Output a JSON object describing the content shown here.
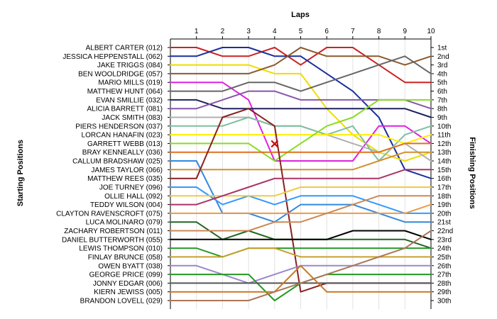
{
  "chart_data": {
    "type": "line",
    "title": "",
    "xlabel": "Laps",
    "ylabel_left": "Starting Positions",
    "ylabel_right": "Finishing Positions",
    "laps": [
      0,
      1,
      2,
      3,
      4,
      5,
      6,
      7,
      8,
      9,
      10
    ],
    "lap_tick_labels": [
      "1",
      "2",
      "3",
      "4",
      "5",
      "6",
      "7",
      "8",
      "9",
      "10"
    ],
    "ylim": [
      1,
      30
    ],
    "starting_labels": [
      "ALBERT CARTER (012)",
      "JESSICA HEPPENSTALL (062)",
      "JAKE TRIGGS (084)",
      "BEN WOOLDRIDGE (057)",
      "MARIO MILLS (019)",
      "MATTHEW HUNT (064)",
      "EVAN SMILLIE (032)",
      "ALICIA BARRETT (081)",
      "JACK SMITH (083)",
      "PIERS HENDERSON (037)",
      "LORCAN HANAFIN (023)",
      "GARRETT WEBB (013)",
      "BRAY KENNEALLY (036)",
      "CALLUM BRADSHAW (025)",
      "JAMES TAYLOR (066)",
      "MATTHEW REES (035)",
      "JOE TURNEY (096)",
      "OLLIE HALL (092)",
      "TEDDY WILSON (004)",
      "CLAYTON RAVENSCROFT (075)",
      "LUCA MOLINARO (079)",
      "ZACHARY ROBERTSON (011)",
      "DANIEL BUTTERWORTH (055)",
      "LEWIS THOMPSON (010)",
      "FINLAY BRUNCE (058)",
      "OWEN BYATT (038)",
      "GEORGE PRICE (099)",
      "JONNY EDGAR (006)",
      "KIERN JEWISS (005)",
      "BRANDON LOVELL (029)"
    ],
    "finishing_labels": [
      "1st",
      "2nd",
      "3rd",
      "4th",
      "5th",
      "6th",
      "7th",
      "8th",
      "9th",
      "10th",
      "11th",
      "12th",
      "13th",
      "14th",
      "15th",
      "16th",
      "17th",
      "18th",
      "19th",
      "20th",
      "21st",
      "22nd",
      "23rd",
      "24th",
      "25th",
      "26th",
      "27th",
      "28th",
      "29th",
      "30th"
    ],
    "series": [
      {
        "color": "#cc2222",
        "positions": [
          1,
          1,
          2,
          2,
          1,
          3,
          1,
          1,
          3,
          5,
          5
        ]
      },
      {
        "color": "#1a2fa0",
        "positions": [
          2,
          2,
          1,
          1,
          2,
          2,
          4,
          6,
          9,
          15,
          16
        ]
      },
      {
        "color": "#eedd00",
        "positions": [
          3,
          3,
          3,
          3,
          4,
          4,
          8,
          11,
          13,
          14,
          13
        ]
      },
      {
        "color": "#8b5a2b",
        "positions": [
          4,
          4,
          4,
          4,
          3,
          1,
          2,
          2,
          2,
          3,
          2
        ]
      },
      {
        "color": "#dd22dd",
        "positions": [
          5,
          5,
          5,
          7,
          14,
          14,
          14,
          14,
          10,
          10,
          12
        ]
      },
      {
        "color": "#666666",
        "positions": [
          6,
          6,
          6,
          5,
          5,
          6,
          5,
          4,
          3,
          2,
          4
        ]
      },
      {
        "color": "#202060",
        "positions": [
          7,
          7,
          8,
          8,
          8,
          8,
          8,
          8,
          8,
          8,
          9
        ]
      },
      {
        "color": "#8855aa",
        "positions": [
          8,
          8,
          7,
          6,
          6,
          7,
          7,
          7,
          7,
          7,
          8
        ]
      },
      {
        "color": "#b0b0b0",
        "positions": [
          9,
          9,
          9,
          9,
          10,
          10,
          11,
          12,
          13,
          12,
          14
        ]
      },
      {
        "color": "#7fbfa0",
        "positions": [
          10,
          10,
          10,
          9,
          10,
          10,
          11,
          10,
          14,
          11,
          10
        ]
      },
      {
        "color": "#ffee00",
        "positions": [
          11,
          11,
          11,
          11,
          11,
          11,
          11,
          11,
          11,
          12,
          11
        ]
      },
      {
        "color": "#88dd22",
        "positions": [
          12,
          12,
          12,
          12,
          14,
          12,
          10,
          9,
          7,
          7,
          7
        ]
      },
      {
        "color": "#e07020",
        "positions": [
          13,
          13,
          13,
          13,
          13,
          13,
          13,
          13,
          13,
          12,
          12
        ]
      },
      {
        "color": "#3388dd",
        "positions": [
          14,
          14,
          20,
          20,
          21,
          19,
          19,
          19,
          20,
          21,
          21
        ]
      },
      {
        "color": "#d49030",
        "positions": [
          15,
          15,
          15,
          15,
          15,
          15,
          15,
          15,
          14,
          13,
          13
        ]
      },
      {
        "color": "#882222",
        "positions": [
          16,
          16,
          9,
          8,
          10,
          29,
          28,
          28,
          28,
          28,
          28
        ]
      },
      {
        "color": "#3399ff",
        "positions": [
          17,
          17,
          19,
          18,
          19,
          18,
          18,
          18,
          19,
          20,
          20
        ]
      },
      {
        "color": "#eecc44",
        "positions": [
          18,
          18,
          18,
          18,
          18,
          17,
          17,
          17,
          17,
          17,
          17
        ]
      },
      {
        "color": "#aa3366",
        "positions": [
          19,
          19,
          18,
          17,
          16,
          16,
          16,
          16,
          16,
          15,
          15
        ]
      },
      {
        "color": "#ee9944",
        "positions": [
          20,
          20,
          20,
          20,
          20,
          20,
          20,
          20,
          20,
          20,
          19
        ]
      },
      {
        "color": "#226622",
        "positions": [
          21,
          21,
          23,
          22,
          23,
          23,
          23,
          23,
          23,
          23,
          24
        ]
      },
      {
        "color": "#cc8855",
        "positions": [
          22,
          22,
          22,
          22,
          21,
          21,
          20,
          19,
          18,
          18,
          18
        ]
      },
      {
        "color": "#000000",
        "positions": [
          23,
          23,
          23,
          23,
          23,
          23,
          23,
          22,
          22,
          22,
          23
        ]
      },
      {
        "color": "#2a9a2a",
        "positions": [
          24,
          24,
          25,
          24,
          24,
          24,
          24,
          24,
          24,
          24,
          24
        ]
      },
      {
        "color": "#c8a030",
        "positions": [
          25,
          25,
          25,
          24,
          24,
          25,
          25,
          25,
          25,
          25,
          25
        ]
      },
      {
        "color": "#9988cc",
        "positions": [
          26,
          26,
          27,
          28,
          27,
          26,
          26,
          26,
          26,
          26,
          26
        ]
      },
      {
        "color": "#229922",
        "positions": [
          27,
          27,
          27,
          27,
          30,
          28,
          27,
          27,
          27,
          27,
          27
        ]
      },
      {
        "color": "#555555",
        "positions": [
          28,
          28,
          28,
          28,
          28,
          28,
          28,
          28,
          28,
          28,
          28
        ]
      },
      {
        "color": "#cc7722",
        "positions": [
          29,
          29,
          29,
          29,
          29,
          26,
          29,
          29,
          29,
          29,
          29
        ]
      },
      {
        "color": "#aa7755",
        "positions": [
          30,
          30,
          30,
          30,
          29,
          28,
          27,
          26,
          25,
          24,
          22
        ]
      }
    ],
    "retirement_marker": {
      "lap": 4,
      "position": 12,
      "symbol": "×",
      "color": "#cc0000"
    }
  }
}
